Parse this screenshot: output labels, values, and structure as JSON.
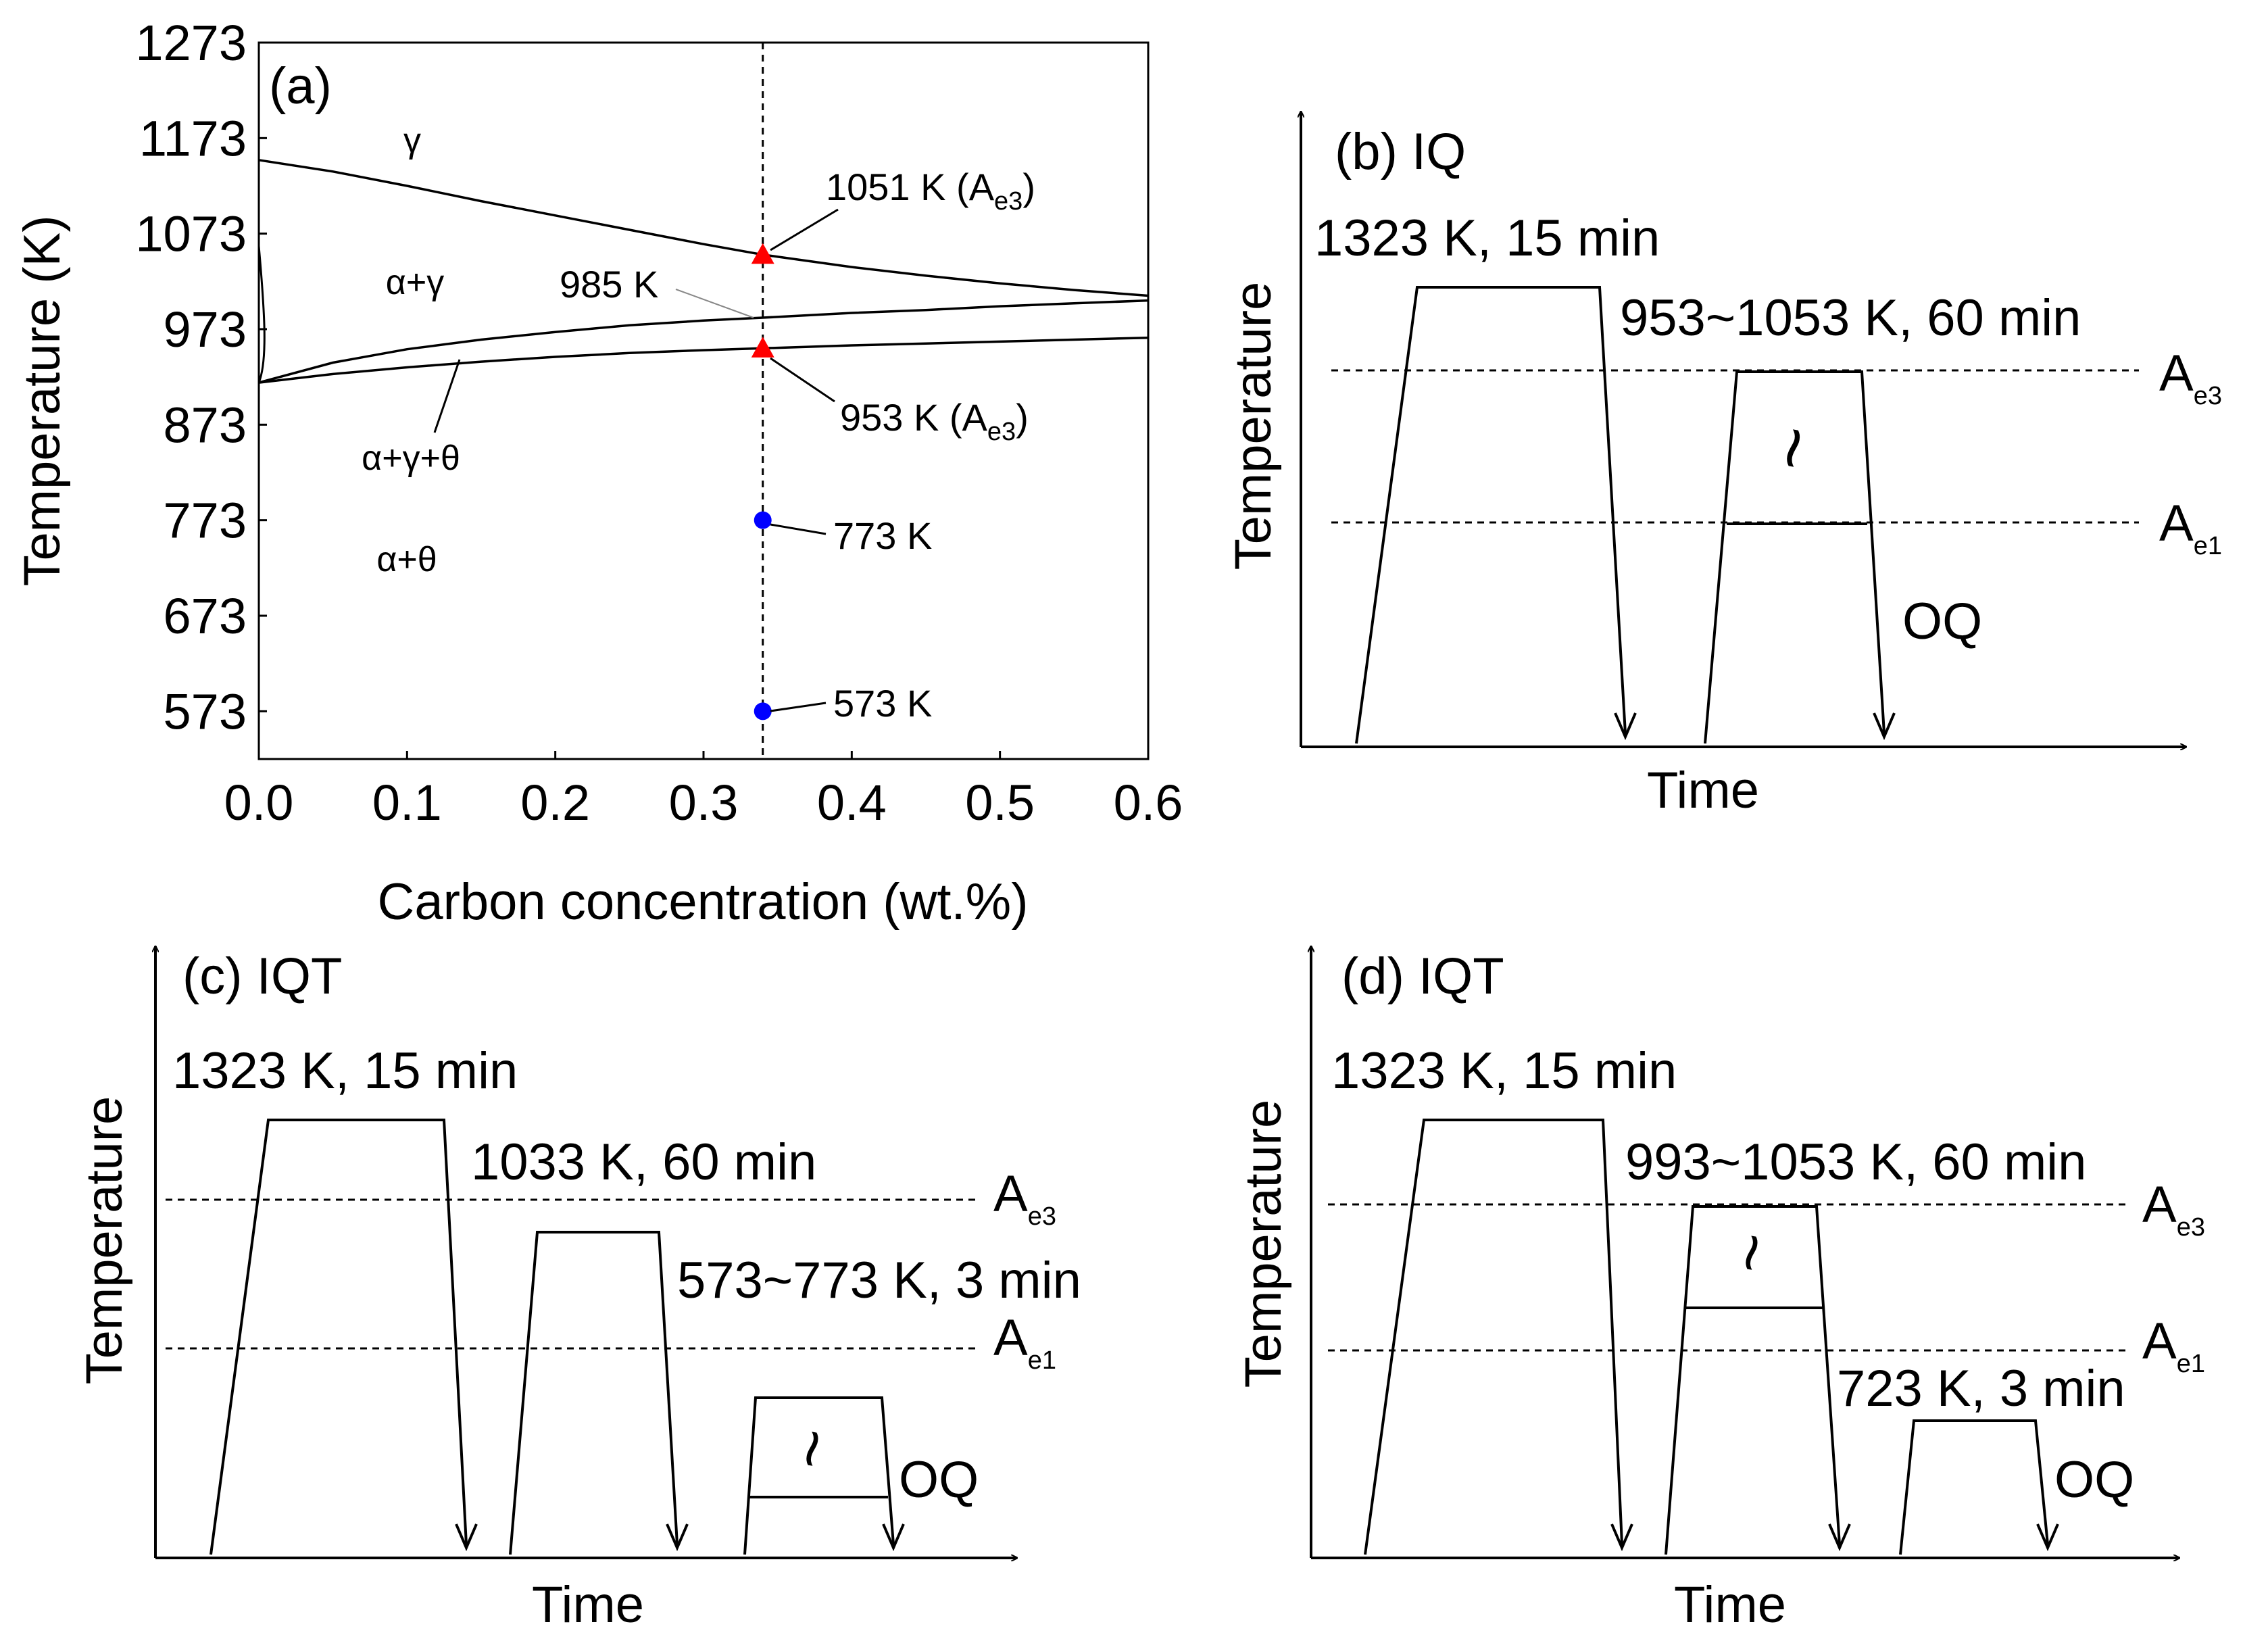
{
  "chart_data": [
    {
      "panel": "a",
      "type": "line",
      "label": "(a)",
      "xlabel": "Carbon concentration (wt.%)",
      "ylabel": "Temperature (K)",
      "xlim": [
        0.0,
        0.6
      ],
      "ylim": [
        523,
        1273
      ],
      "xticks": [
        "0.0",
        "0.1",
        "0.2",
        "0.3",
        "0.4",
        "0.5",
        "0.6"
      ],
      "yticks": [
        "1273",
        "1173",
        "1073",
        "973",
        "873",
        "773",
        "673",
        "573"
      ],
      "series": [
        {
          "name": "A3 (alpha+gamma / gamma)",
          "x": [
            0.0,
            0.05,
            0.1,
            0.15,
            0.2,
            0.25,
            0.3,
            0.34,
            0.4,
            0.45,
            0.5,
            0.55,
            0.6
          ],
          "y": [
            1150,
            1138,
            1123,
            1107,
            1092,
            1077,
            1062,
            1051,
            1038,
            1029,
            1021,
            1014,
            1008
          ]
        },
        {
          "name": "Acm-side boundary (alpha+gamma / alpha+gamma+theta)",
          "x": [
            0.0,
            0.05,
            0.1,
            0.15,
            0.2,
            0.25,
            0.3,
            0.34,
            0.4,
            0.45,
            0.5,
            0.55,
            0.6
          ],
          "y": [
            917,
            938,
            952,
            962,
            970,
            977,
            982,
            985,
            990,
            993,
            997,
            1000,
            1003
          ]
        },
        {
          "name": "A1 (alpha+gamma+theta / alpha+theta)",
          "x": [
            0.0,
            0.05,
            0.1,
            0.15,
            0.2,
            0.25,
            0.3,
            0.34,
            0.4,
            0.45,
            0.5,
            0.55,
            0.6
          ],
          "y": [
            917,
            926,
            933,
            939,
            944,
            948,
            951,
            953,
            956,
            958,
            960,
            962,
            964
          ]
        }
      ],
      "vline_x": 0.34,
      "points": [
        {
          "x": 0.34,
          "y": 1051,
          "marker": "triangle",
          "color": "#ff0000",
          "label": "1051 K (A",
          "sub": "e3",
          "close": ")"
        },
        {
          "x": 0.34,
          "y": 953,
          "marker": "triangle",
          "color": "#ff0000",
          "label": "953 K (A",
          "sub": "e3",
          "close": ")"
        },
        {
          "x": 0.34,
          "y": 773,
          "marker": "circle",
          "color": "#0000ff",
          "label": "773 K"
        },
        {
          "x": 0.34,
          "y": 573,
          "marker": "circle",
          "color": "#0000ff",
          "label": "573 K"
        }
      ],
      "annotations": [
        "985 K"
      ],
      "regions": [
        "γ",
        "α+γ",
        "α+γ+θ",
        "α+θ"
      ]
    },
    {
      "panel": "b",
      "type": "schematic",
      "label": "(b) IQ",
      "xlabel": "Time",
      "ylabel": "Temperature",
      "steps": [
        "1323 K, 15 min",
        "953~1053 K, 60 min"
      ],
      "levels": [
        {
          "base": "A",
          "sub": "e3"
        },
        {
          "base": "A",
          "sub": "e1"
        }
      ],
      "quench": "OQ",
      "tilde": "~"
    },
    {
      "panel": "c",
      "type": "schematic",
      "label": "(c) IQT",
      "xlabel": "Time",
      "ylabel": "Temperature",
      "steps": [
        "1323 K, 15 min",
        "1033 K, 60 min",
        "573~773 K, 3 min"
      ],
      "levels": [
        {
          "base": "A",
          "sub": "e3"
        },
        {
          "base": "A",
          "sub": "e1"
        }
      ],
      "quench": "OQ",
      "tilde": "~"
    },
    {
      "panel": "d",
      "type": "schematic",
      "label": "(d) IQT",
      "xlabel": "Time",
      "ylabel": "Temperature",
      "steps": [
        "1323 K, 15 min",
        "993~1053 K, 60 min",
        "723 K, 3 min"
      ],
      "levels": [
        {
          "base": "A",
          "sub": "e3"
        },
        {
          "base": "A",
          "sub": "e1"
        }
      ],
      "quench": "OQ",
      "tilde": "~"
    }
  ]
}
